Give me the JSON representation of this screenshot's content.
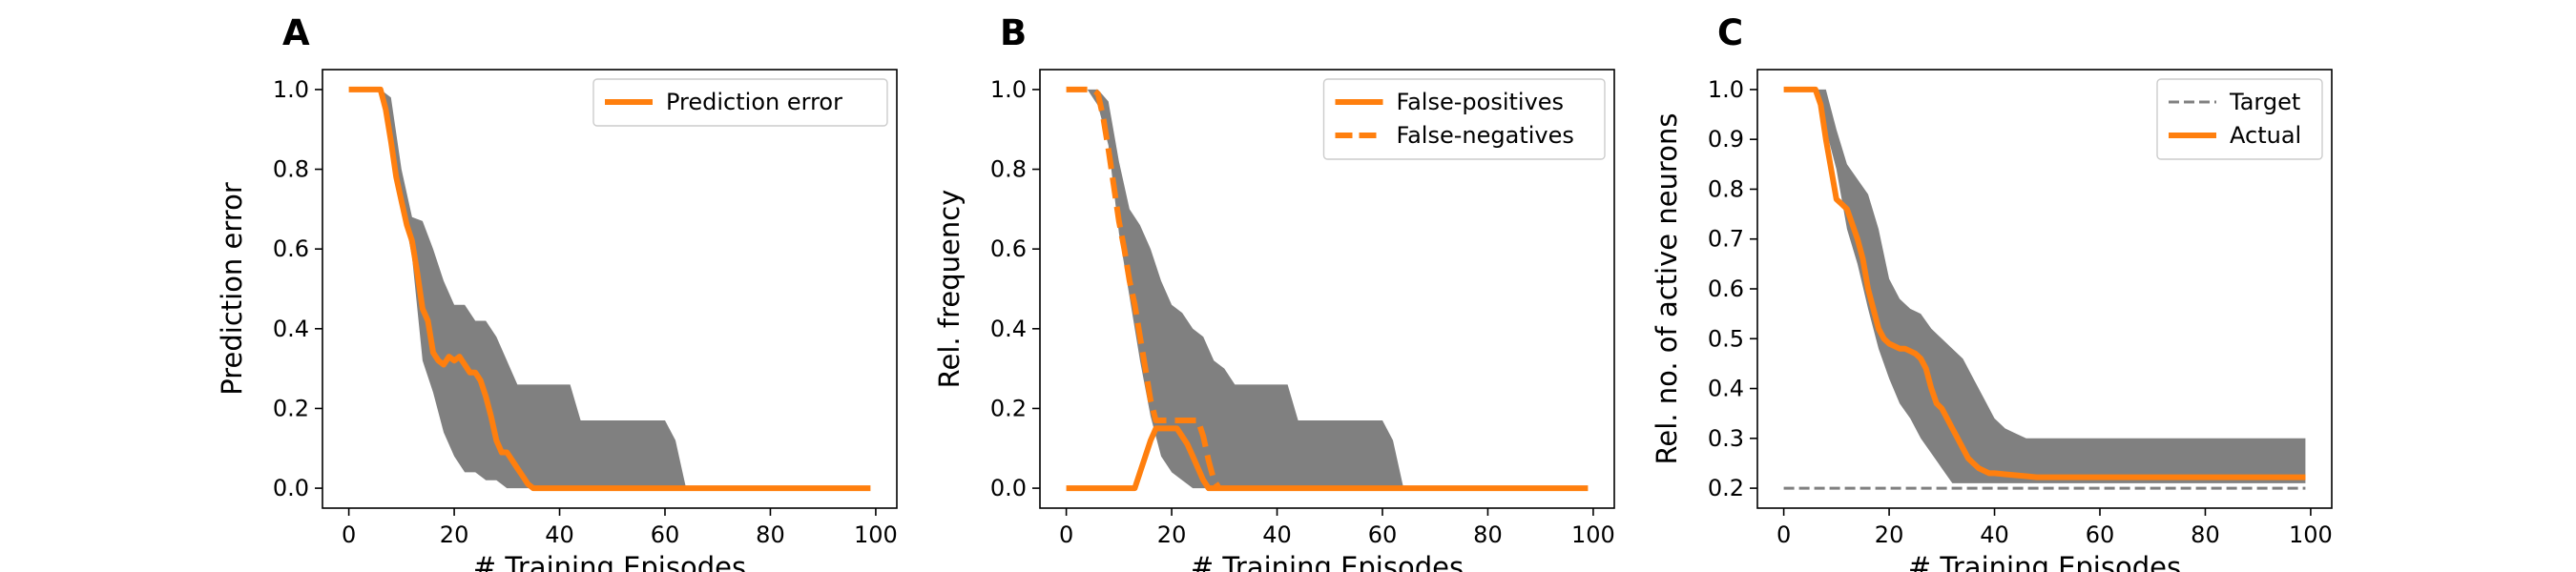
{
  "figure": {
    "background": "#ffffff"
  },
  "chart_data": [
    {
      "panel": "A",
      "type": "line",
      "xlabel": "# Training Episodes",
      "ylabel": "Prediction error",
      "xlim": [
        -5,
        104
      ],
      "ylim": [
        -0.05,
        1.05
      ],
      "xticks": [
        0,
        20,
        40,
        60,
        80,
        100
      ],
      "yticks": [
        0.0,
        0.2,
        0.4,
        0.6,
        0.8,
        1.0
      ],
      "ytick_labels": [
        "0.0",
        "0.2",
        "0.4",
        "0.6",
        "0.8",
        "1.0"
      ],
      "grid": false,
      "legend": {
        "position": "upper right",
        "entries": [
          "Prediction error"
        ]
      },
      "band": {
        "color": "#808080",
        "x": [
          0,
          6,
          8,
          10,
          12,
          14,
          16,
          18,
          20,
          22,
          24,
          26,
          28,
          30,
          32,
          34,
          36,
          40,
          42,
          44,
          60,
          62,
          64,
          99
        ],
        "lower": [
          1.0,
          1.0,
          0.88,
          0.72,
          0.58,
          0.32,
          0.24,
          0.14,
          0.08,
          0.04,
          0.04,
          0.02,
          0.02,
          0.0,
          0.0,
          0.0,
          0.0,
          0.0,
          0.0,
          0.0,
          0.0,
          0.0,
          0.0,
          0.0
        ],
        "upper": [
          1.0,
          1.0,
          0.98,
          0.8,
          0.68,
          0.67,
          0.6,
          0.52,
          0.46,
          0.46,
          0.42,
          0.42,
          0.38,
          0.32,
          0.26,
          0.26,
          0.26,
          0.26,
          0.26,
          0.17,
          0.17,
          0.12,
          0.0,
          0.0
        ]
      },
      "series": [
        {
          "name": "Prediction error",
          "color": "#ff7f0e",
          "dash": "solid",
          "x": [
            0,
            1,
            2,
            3,
            4,
            5,
            6,
            7,
            8,
            9,
            10,
            11,
            12,
            13,
            14,
            15,
            16,
            17,
            18,
            19,
            20,
            21,
            22,
            23,
            24,
            25,
            26,
            27,
            28,
            29,
            30,
            31,
            32,
            33,
            34,
            35,
            36,
            40,
            50,
            60,
            70,
            80,
            90,
            99
          ],
          "values": [
            1.0,
            1.0,
            1.0,
            1.0,
            1.0,
            1.0,
            1.0,
            0.95,
            0.87,
            0.78,
            0.72,
            0.66,
            0.62,
            0.54,
            0.45,
            0.42,
            0.34,
            0.32,
            0.31,
            0.33,
            0.32,
            0.33,
            0.31,
            0.29,
            0.29,
            0.27,
            0.23,
            0.18,
            0.12,
            0.09,
            0.09,
            0.07,
            0.05,
            0.03,
            0.01,
            0.0,
            0.0,
            0.0,
            0.0,
            0.0,
            0.0,
            0.0,
            0.0,
            0.0
          ]
        }
      ]
    },
    {
      "panel": "B",
      "type": "line",
      "xlabel": "# Training Episodes",
      "ylabel": "Rel. frequency",
      "xlim": [
        -5,
        104
      ],
      "ylim": [
        -0.05,
        1.05
      ],
      "xticks": [
        0,
        20,
        40,
        60,
        80,
        100
      ],
      "yticks": [
        0.0,
        0.2,
        0.4,
        0.6,
        0.8,
        1.0
      ],
      "ytick_labels": [
        "0.0",
        "0.2",
        "0.4",
        "0.6",
        "0.8",
        "1.0"
      ],
      "grid": false,
      "legend": {
        "position": "upper right",
        "entries": [
          "False-positives",
          "False-negatives"
        ]
      },
      "band": {
        "color": "#808080",
        "x": [
          0,
          4,
          6,
          8,
          10,
          12,
          14,
          16,
          18,
          20,
          22,
          24,
          26,
          28,
          30,
          32,
          34,
          36,
          40,
          42,
          44,
          60,
          62,
          64,
          99
        ],
        "lower": [
          1.0,
          1.0,
          0.96,
          0.86,
          0.64,
          0.48,
          0.32,
          0.18,
          0.08,
          0.04,
          0.02,
          0.0,
          0.0,
          0.0,
          0.0,
          0.0,
          0.0,
          0.0,
          0.0,
          0.0,
          0.0,
          0.0,
          0.0,
          0.0,
          0.0
        ],
        "upper": [
          1.0,
          1.0,
          1.0,
          0.97,
          0.82,
          0.7,
          0.66,
          0.6,
          0.52,
          0.46,
          0.44,
          0.4,
          0.38,
          0.32,
          0.3,
          0.26,
          0.26,
          0.26,
          0.26,
          0.26,
          0.17,
          0.17,
          0.12,
          0.0,
          0.0
        ]
      },
      "series": [
        {
          "name": "False-positives",
          "color": "#ff7f0e",
          "dash": "solid",
          "x": [
            0,
            12,
            13,
            14,
            15,
            16,
            17,
            18,
            19,
            20,
            21,
            22,
            23,
            24,
            25,
            26,
            27,
            28,
            40,
            60,
            80,
            99
          ],
          "values": [
            0.0,
            0.0,
            0.0,
            0.04,
            0.08,
            0.12,
            0.15,
            0.15,
            0.15,
            0.15,
            0.15,
            0.13,
            0.11,
            0.08,
            0.05,
            0.02,
            0.0,
            0.0,
            0.0,
            0.0,
            0.0,
            0.0
          ]
        },
        {
          "name": "False-negatives",
          "color": "#ff7f0e",
          "dash": "dashed",
          "x": [
            0,
            1,
            2,
            3,
            4,
            5,
            6,
            7,
            8,
            9,
            10,
            11,
            12,
            13,
            14,
            15,
            16,
            17,
            18,
            19,
            20,
            21,
            22,
            23,
            24,
            25,
            26,
            27,
            28,
            29
          ],
          "values": [
            1.0,
            1.0,
            1.0,
            1.0,
            1.0,
            1.0,
            0.99,
            0.93,
            0.85,
            0.76,
            0.67,
            0.6,
            0.52,
            0.46,
            0.38,
            0.3,
            0.22,
            0.17,
            0.17,
            0.17,
            0.17,
            0.17,
            0.17,
            0.17,
            0.17,
            0.17,
            0.13,
            0.07,
            0.02,
            0.0
          ]
        }
      ]
    },
    {
      "panel": "C",
      "type": "line",
      "xlabel": "# Training Episodes",
      "ylabel": "Rel. no. of active neurons",
      "xlim": [
        -5,
        104
      ],
      "ylim": [
        0.16,
        1.04
      ],
      "xticks": [
        0,
        20,
        40,
        60,
        80,
        100
      ],
      "yticks": [
        0.2,
        0.3,
        0.4,
        0.5,
        0.6,
        0.7,
        0.8,
        0.9,
        1.0
      ],
      "ytick_labels": [
        "0.2",
        "0.3",
        "0.4",
        "0.5",
        "0.6",
        "0.7",
        "0.8",
        "0.9",
        "1.0"
      ],
      "grid": false,
      "legend": {
        "position": "upper right",
        "entries": [
          "Target",
          "Actual"
        ]
      },
      "band": {
        "color": "#808080",
        "x": [
          0,
          6,
          8,
          10,
          12,
          14,
          16,
          18,
          20,
          22,
          24,
          26,
          28,
          30,
          32,
          34,
          36,
          38,
          40,
          42,
          44,
          46,
          48,
          60,
          99
        ],
        "lower": [
          1.0,
          1.0,
          0.92,
          0.84,
          0.72,
          0.65,
          0.56,
          0.48,
          0.42,
          0.37,
          0.34,
          0.3,
          0.27,
          0.24,
          0.21,
          0.21,
          0.21,
          0.21,
          0.21,
          0.21,
          0.21,
          0.21,
          0.21,
          0.21,
          0.21
        ],
        "upper": [
          1.0,
          1.0,
          1.0,
          0.92,
          0.85,
          0.82,
          0.79,
          0.72,
          0.62,
          0.58,
          0.56,
          0.55,
          0.52,
          0.5,
          0.48,
          0.46,
          0.42,
          0.38,
          0.34,
          0.32,
          0.31,
          0.3,
          0.3,
          0.3,
          0.3
        ]
      },
      "series": [
        {
          "name": "Target",
          "color": "#808080",
          "dash": "dashed",
          "x": [
            0,
            99
          ],
          "values": [
            0.2,
            0.2
          ]
        },
        {
          "name": "Actual",
          "color": "#ff7f0e",
          "dash": "solid",
          "x": [
            0,
            1,
            2,
            3,
            4,
            5,
            6,
            7,
            8,
            9,
            10,
            11,
            12,
            13,
            14,
            15,
            16,
            17,
            18,
            19,
            20,
            21,
            22,
            23,
            24,
            25,
            26,
            27,
            28,
            29,
            30,
            31,
            32,
            33,
            34,
            35,
            36,
            37,
            38,
            39,
            40,
            42,
            44,
            46,
            48,
            50,
            60,
            70,
            80,
            90,
            99
          ],
          "values": [
            1.0,
            1.0,
            1.0,
            1.0,
            1.0,
            1.0,
            1.0,
            0.97,
            0.9,
            0.84,
            0.78,
            0.77,
            0.76,
            0.73,
            0.7,
            0.66,
            0.6,
            0.56,
            0.52,
            0.5,
            0.49,
            0.485,
            0.48,
            0.48,
            0.475,
            0.47,
            0.46,
            0.44,
            0.4,
            0.37,
            0.36,
            0.34,
            0.32,
            0.3,
            0.28,
            0.26,
            0.25,
            0.24,
            0.235,
            0.23,
            0.23,
            0.228,
            0.226,
            0.224,
            0.222,
            0.222,
            0.222,
            0.222,
            0.222,
            0.222,
            0.222
          ]
        }
      ]
    }
  ]
}
